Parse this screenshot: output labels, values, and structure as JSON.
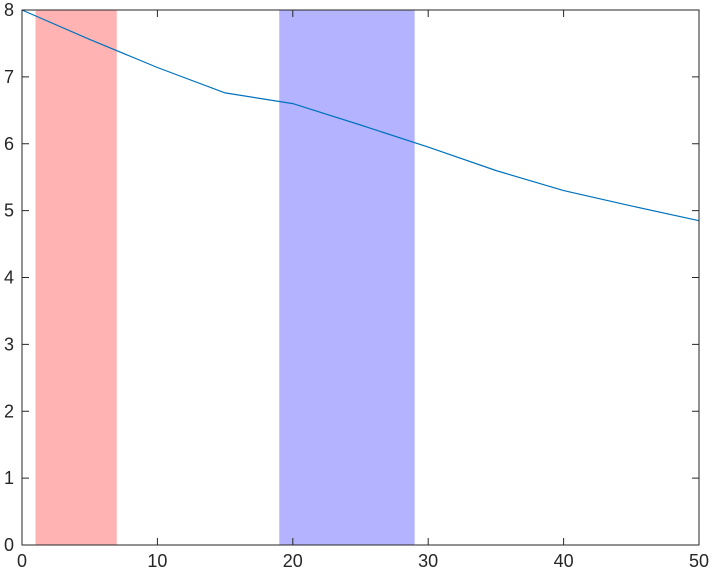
{
  "chart_data": {
    "type": "line",
    "title": "",
    "xlabel": "",
    "ylabel": "",
    "xlim": [
      0,
      50
    ],
    "ylim": [
      0,
      8
    ],
    "x_ticks": [
      0,
      10,
      20,
      30,
      40,
      50
    ],
    "y_ticks": [
      0,
      1,
      2,
      3,
      4,
      5,
      6,
      7,
      8
    ],
    "x_tick_labels": [
      "0",
      "10",
      "20",
      "30",
      "40",
      "50"
    ],
    "y_tick_labels": [
      "0",
      "1",
      "2",
      "3",
      "4",
      "5",
      "6",
      "7",
      "8"
    ],
    "grid": false,
    "box": true,
    "shaded_regions": [
      {
        "x_start": 1,
        "x_end": 7,
        "color": "#ffb3b3"
      },
      {
        "x_start": 19,
        "x_end": 29,
        "color": "#b3b3ff"
      }
    ],
    "series": [
      {
        "color": "#0072bd",
        "x": [
          0,
          5,
          10,
          15,
          20,
          25,
          30,
          35,
          40,
          45,
          50
        ],
        "y": [
          8.0,
          7.56,
          7.14,
          6.76,
          6.6,
          6.28,
          5.95,
          5.6,
          5.3,
          5.07,
          4.85
        ]
      }
    ]
  }
}
